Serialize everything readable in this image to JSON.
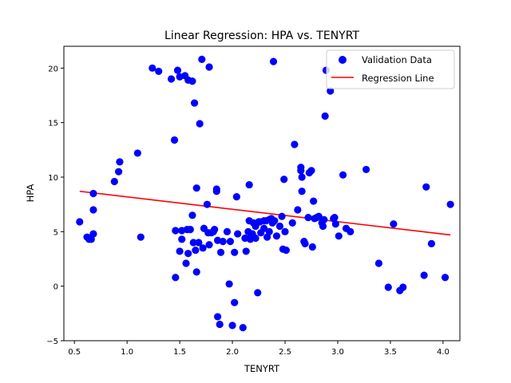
{
  "chart_data": {
    "type": "scatter",
    "title": "Linear Regression: HPA vs. TENYRT",
    "xlabel": "TENYRT",
    "ylabel": "HPA",
    "xlim": [
      0.4,
      4.16
    ],
    "ylim": [
      -5,
      22
    ],
    "xticks": [
      0.5,
      1.0,
      1.5,
      2.0,
      2.5,
      3.0,
      3.5,
      4.0
    ],
    "xtick_labels": [
      "0.5",
      "1.0",
      "1.5",
      "2.0",
      "2.5",
      "3.0",
      "3.5",
      "4.0"
    ],
    "yticks": [
      -5,
      0,
      5,
      10,
      15,
      20
    ],
    "ytick_labels": [
      "−5",
      "0",
      "5",
      "10",
      "15",
      "20"
    ],
    "grid": false,
    "legend_position": "top-right",
    "colors": {
      "scatter": "#0000ff",
      "line": "#ff0000"
    },
    "series": [
      {
        "name": "Validation Data",
        "kind": "scatter",
        "points": [
          [
            0.55,
            5.9
          ],
          [
            0.62,
            4.5
          ],
          [
            0.64,
            4.3
          ],
          [
            0.66,
            4.3
          ],
          [
            0.68,
            4.8
          ],
          [
            0.68,
            7.0
          ],
          [
            0.68,
            8.5
          ],
          [
            0.88,
            9.6
          ],
          [
            0.92,
            10.5
          ],
          [
            0.93,
            11.4
          ],
          [
            1.1,
            12.2
          ],
          [
            1.13,
            4.5
          ],
          [
            1.24,
            20.0
          ],
          [
            1.3,
            19.7
          ],
          [
            1.42,
            19.0
          ],
          [
            1.45,
            13.4
          ],
          [
            1.46,
            5.1
          ],
          [
            1.46,
            0.8
          ],
          [
            1.48,
            19.8
          ],
          [
            1.5,
            19.2
          ],
          [
            1.5,
            3.2
          ],
          [
            1.52,
            5.1
          ],
          [
            1.52,
            4.3
          ],
          [
            1.55,
            19.3
          ],
          [
            1.56,
            2.1
          ],
          [
            1.58,
            18.9
          ],
          [
            1.57,
            5.2
          ],
          [
            1.58,
            3.0
          ],
          [
            1.6,
            5.2
          ],
          [
            1.62,
            18.8
          ],
          [
            1.62,
            6.5
          ],
          [
            1.63,
            4.0
          ],
          [
            1.64,
            16.8
          ],
          [
            1.65,
            3.3
          ],
          [
            1.66,
            9.0
          ],
          [
            1.66,
            1.3
          ],
          [
            1.68,
            4.0
          ],
          [
            1.69,
            14.9
          ],
          [
            1.71,
            20.8
          ],
          [
            1.72,
            3.5
          ],
          [
            1.73,
            5.3
          ],
          [
            1.76,
            7.5
          ],
          [
            1.77,
            4.9
          ],
          [
            1.78,
            20.1
          ],
          [
            1.78,
            3.8
          ],
          [
            1.8,
            4.9
          ],
          [
            1.82,
            5.0
          ],
          [
            1.83,
            5.2
          ],
          [
            1.85,
            8.9
          ],
          [
            1.85,
            8.7
          ],
          [
            1.86,
            4.2
          ],
          [
            1.86,
            -2.8
          ],
          [
            1.88,
            -3.5
          ],
          [
            1.89,
            3.1
          ],
          [
            1.91,
            4.1
          ],
          [
            1.95,
            5.0
          ],
          [
            1.97,
            0.2
          ],
          [
            1.98,
            4.1
          ],
          [
            2.0,
            -3.6
          ],
          [
            2.02,
            -1.5
          ],
          [
            2.02,
            3.1
          ],
          [
            2.04,
            8.2
          ],
          [
            2.05,
            4.8
          ],
          [
            2.1,
            -3.8
          ],
          [
            2.12,
            4.4
          ],
          [
            2.13,
            3.2
          ],
          [
            2.15,
            5.0
          ],
          [
            2.16,
            9.3
          ],
          [
            2.16,
            6.0
          ],
          [
            2.17,
            4.3
          ],
          [
            2.18,
            4.6
          ],
          [
            2.19,
            4.8
          ],
          [
            2.2,
            5.8
          ],
          [
            2.22,
            4.4
          ],
          [
            2.22,
            5.5
          ],
          [
            2.24,
            -0.6
          ],
          [
            2.25,
            5.9
          ],
          [
            2.26,
            5.9
          ],
          [
            2.27,
            4.9
          ],
          [
            2.3,
            6.0
          ],
          [
            2.3,
            5.3
          ],
          [
            2.32,
            6.0
          ],
          [
            2.33,
            4.5
          ],
          [
            2.35,
            5.0
          ],
          [
            2.35,
            6.1
          ],
          [
            2.37,
            6.2
          ],
          [
            2.38,
            5.8
          ],
          [
            2.39,
            20.6
          ],
          [
            2.4,
            6.0
          ],
          [
            2.42,
            4.6
          ],
          [
            2.45,
            5.5
          ],
          [
            2.47,
            6.4
          ],
          [
            2.48,
            3.4
          ],
          [
            2.49,
            9.8
          ],
          [
            2.5,
            5.0
          ],
          [
            2.51,
            3.3
          ],
          [
            2.57,
            5.8
          ],
          [
            2.59,
            13.0
          ],
          [
            2.62,
            7.0
          ],
          [
            2.65,
            10.9
          ],
          [
            2.65,
            10.6
          ],
          [
            2.66,
            8.7
          ],
          [
            2.66,
            10.0
          ],
          [
            2.68,
            4.1
          ],
          [
            2.69,
            3.9
          ],
          [
            2.72,
            6.3
          ],
          [
            2.73,
            10.4
          ],
          [
            2.75,
            10.6
          ],
          [
            2.76,
            3.6
          ],
          [
            2.77,
            7.8
          ],
          [
            2.78,
            6.2
          ],
          [
            2.8,
            6.3
          ],
          [
            2.82,
            6.4
          ],
          [
            2.85,
            5.8
          ],
          [
            2.86,
            5.5
          ],
          [
            2.87,
            6.1
          ],
          [
            2.88,
            15.6
          ],
          [
            2.89,
            19.8
          ],
          [
            2.93,
            17.9
          ],
          [
            2.96,
            6.2
          ],
          [
            2.97,
            6.3
          ],
          [
            2.98,
            5.7
          ],
          [
            3.01,
            4.6
          ],
          [
            3.05,
            10.2
          ],
          [
            3.08,
            5.3
          ],
          [
            3.12,
            5.0
          ],
          [
            3.27,
            10.7
          ],
          [
            3.39,
            2.1
          ],
          [
            3.48,
            -0.1
          ],
          [
            3.53,
            5.7
          ],
          [
            3.59,
            -0.4
          ],
          [
            3.62,
            -0.1
          ],
          [
            3.82,
            1.0
          ],
          [
            3.84,
            9.1
          ],
          [
            3.89,
            3.9
          ],
          [
            4.02,
            0.8
          ],
          [
            4.07,
            7.5
          ]
        ]
      },
      {
        "name": "Regression Line",
        "kind": "line",
        "points": [
          [
            0.55,
            8.7
          ],
          [
            4.07,
            4.7
          ]
        ]
      }
    ]
  }
}
